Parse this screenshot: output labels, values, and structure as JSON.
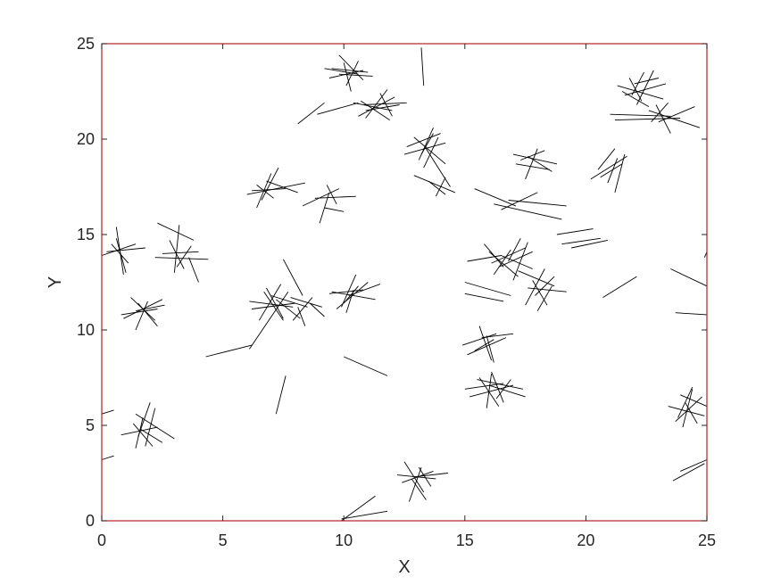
{
  "chart_data": {
    "type": "line",
    "title": "",
    "xlabel": "X",
    "ylabel": "Y",
    "xlim": [
      0,
      25
    ],
    "ylim": [
      0,
      25
    ],
    "xticks": [
      0,
      5,
      10,
      15,
      20,
      25
    ],
    "yticks": [
      0,
      5,
      10,
      15,
      20,
      25
    ],
    "grid": false,
    "legend": "none",
    "frame_color": "#b22222",
    "line_color": "#000000",
    "segments": [
      [
        9.5,
        23.7,
        11.0,
        23.5
      ],
      [
        9.2,
        23.7,
        10.6,
        23.4
      ],
      [
        9.4,
        23.2,
        10.8,
        23.6
      ],
      [
        9.8,
        24.4,
        10.8,
        23.1
      ],
      [
        10.0,
        24.0,
        10.3,
        22.5
      ],
      [
        10.6,
        24.1,
        10.1,
        22.8
      ],
      [
        9.8,
        23.4,
        11.2,
        23.3
      ],
      [
        10.4,
        21.9,
        12.0,
        21.5
      ],
      [
        10.6,
        21.2,
        12.1,
        22.2
      ],
      [
        10.9,
        21.1,
        11.8,
        22.6
      ],
      [
        10.8,
        21.8,
        12.6,
        21.9
      ],
      [
        11.5,
        22.4,
        12.0,
        21.2
      ],
      [
        10.9,
        21.5,
        12.3,
        21.8
      ],
      [
        10.7,
        22.0,
        11.9,
        21.0
      ],
      [
        8.1,
        20.8,
        9.2,
        21.9
      ],
      [
        8.9,
        21.3,
        10.6,
        21.9
      ],
      [
        13.2,
        24.8,
        13.3,
        22.8
      ],
      [
        12.6,
        19.6,
        14.0,
        20.3
      ],
      [
        12.5,
        19.2,
        14.2,
        19.8
      ],
      [
        13.1,
        18.9,
        13.7,
        20.6
      ],
      [
        13.3,
        18.5,
        13.9,
        20.1
      ],
      [
        12.9,
        20.1,
        14.2,
        18.7
      ],
      [
        13.4,
        19.5,
        14.4,
        17.5
      ],
      [
        12.9,
        18.1,
        14.6,
        17.2
      ],
      [
        13.5,
        17.8,
        14.2,
        17.1
      ],
      [
        14.2,
        18.0,
        13.8,
        17.0
      ],
      [
        13.7,
        20.3,
        13.2,
        19.2
      ],
      [
        15.4,
        17.4,
        17.1,
        16.5
      ],
      [
        16.5,
        16.3,
        18.0,
        17.2
      ],
      [
        16.8,
        16.8,
        19.2,
        16.5
      ],
      [
        16.2,
        16.6,
        19.0,
        15.8
      ],
      [
        17.0,
        19.2,
        18.8,
        18.7
      ],
      [
        17.3,
        18.9,
        18.3,
        19.4
      ],
      [
        17.6,
        19.1,
        18.6,
        18.3
      ],
      [
        18.0,
        19.5,
        17.5,
        17.9
      ],
      [
        17.1,
        18.7,
        18.5,
        18.4
      ],
      [
        20.2,
        17.9,
        21.7,
        19.1
      ],
      [
        20.6,
        18.0,
        21.5,
        18.7
      ],
      [
        20.9,
        17.7,
        21.3,
        19.0
      ],
      [
        21.2,
        17.2,
        21.6,
        19.2
      ],
      [
        20.5,
        18.4,
        21.2,
        19.5
      ],
      [
        21.3,
        22.8,
        23.2,
        22.1
      ],
      [
        21.5,
        22.5,
        22.6,
        21.7
      ],
      [
        21.8,
        23.2,
        22.3,
        22.0
      ],
      [
        22.0,
        22.9,
        23.0,
        23.2
      ],
      [
        22.4,
        23.5,
        21.9,
        22.3
      ],
      [
        21.6,
        22.3,
        23.3,
        22.9
      ],
      [
        22.1,
        21.8,
        22.8,
        23.6
      ],
      [
        21.0,
        21.3,
        23.5,
        21.2
      ],
      [
        21.2,
        21.0,
        23.9,
        21.1
      ],
      [
        22.6,
        21.5,
        24.7,
        20.6
      ],
      [
        23.0,
        20.9,
        24.5,
        21.7
      ],
      [
        22.9,
        21.8,
        23.5,
        20.3
      ],
      [
        23.4,
        21.9,
        22.7,
        20.9
      ],
      [
        6.2,
        17.3,
        7.6,
        17.4
      ],
      [
        6.4,
        16.4,
        7.0,
        18.2
      ],
      [
        6.6,
        16.8,
        7.3,
        18.5
      ],
      [
        6.8,
        17.8,
        8.1,
        17.2
      ],
      [
        6.0,
        17.1,
        8.4,
        17.7
      ],
      [
        7.1,
        16.9,
        6.4,
        17.6
      ],
      [
        8.3,
        16.5,
        9.8,
        17.4
      ],
      [
        8.8,
        16.9,
        10.5,
        17.0
      ],
      [
        9.0,
        15.6,
        9.4,
        17.2
      ],
      [
        9.2,
        16.4,
        10.0,
        16.2
      ],
      [
        9.7,
        16.6,
        9.3,
        17.6
      ],
      [
        0.2,
        14.1,
        1.8,
        14.3
      ],
      [
        0.6,
        14.8,
        1.0,
        13.0
      ],
      [
        0.9,
        12.9,
        0.6,
        15.4
      ],
      [
        0.0,
        13.9,
        1.4,
        14.5
      ],
      [
        0.4,
        14.5,
        1.1,
        13.5
      ],
      [
        2.2,
        13.8,
        4.4,
        13.7
      ],
      [
        2.5,
        14.0,
        4.0,
        14.1
      ],
      [
        2.8,
        14.7,
        3.4,
        13.2
      ],
      [
        3.1,
        13.3,
        3.7,
        14.4
      ],
      [
        2.3,
        15.6,
        3.8,
        14.7
      ],
      [
        3.2,
        15.5,
        3.0,
        13.0
      ],
      [
        3.6,
        13.8,
        4.0,
        12.5
      ],
      [
        0.8,
        10.8,
        2.3,
        11.1
      ],
      [
        1.2,
        11.7,
        2.2,
        10.5
      ],
      [
        1.5,
        11.4,
        2.3,
        10.2
      ],
      [
        1.4,
        10.0,
        1.9,
        11.5
      ],
      [
        0.9,
        10.6,
        2.5,
        11.6
      ],
      [
        1.4,
        11.0,
        2.6,
        11.3
      ],
      [
        6.1,
        11.5,
        7.9,
        11.2
      ],
      [
        6.2,
        11.1,
        8.0,
        11.4
      ],
      [
        6.5,
        10.5,
        7.4,
        12.4
      ],
      [
        6.7,
        12.0,
        7.5,
        10.5
      ],
      [
        7.0,
        11.8,
        8.5,
        11.2
      ],
      [
        7.2,
        11.6,
        8.2,
        10.6
      ],
      [
        7.5,
        10.6,
        6.8,
        12.2
      ],
      [
        7.8,
        11.7,
        9.1,
        11.2
      ],
      [
        8.1,
        11.2,
        8.4,
        10.2
      ],
      [
        7.9,
        10.5,
        8.7,
        11.7
      ],
      [
        8.6,
        11.4,
        9.2,
        10.7
      ],
      [
        7.5,
        13.7,
        8.3,
        11.8
      ],
      [
        6.1,
        9.0,
        7.7,
        12.0
      ],
      [
        4.3,
        8.6,
        6.2,
        9.2
      ],
      [
        7.2,
        5.6,
        7.6,
        7.6
      ],
      [
        9.4,
        11.9,
        10.8,
        12.1
      ],
      [
        9.7,
        11.1,
        11.0,
        12.5
      ],
      [
        10.1,
        10.9,
        10.4,
        12.1
      ],
      [
        10.5,
        12.9,
        9.9,
        11.2
      ],
      [
        10.2,
        11.8,
        11.5,
        12.4
      ],
      [
        9.5,
        12.0,
        11.3,
        11.6
      ],
      [
        10.6,
        12.3,
        10.0,
        11.4
      ],
      [
        15.1,
        13.6,
        16.5,
        13.9
      ],
      [
        15.8,
        14.5,
        16.6,
        13.3
      ],
      [
        16.0,
        14.1,
        17.2,
        12.8
      ],
      [
        16.4,
        13.3,
        17.8,
        14.1
      ],
      [
        16.8,
        13.6,
        17.3,
        14.8
      ],
      [
        17.0,
        12.6,
        17.6,
        14.6
      ],
      [
        16.5,
        13.9,
        17.8,
        13.2
      ],
      [
        16.9,
        14.2,
        16.2,
        12.9
      ],
      [
        16.1,
        13.5,
        17.5,
        14.3
      ],
      [
        17.2,
        13.1,
        18.7,
        12.3
      ],
      [
        17.8,
        12.6,
        18.4,
        11.3
      ],
      [
        17.9,
        11.8,
        18.7,
        12.8
      ],
      [
        18.0,
        11.0,
        18.6,
        12.3
      ],
      [
        18.3,
        13.2,
        17.5,
        11.3
      ],
      [
        17.6,
        12.2,
        19.2,
        12.0
      ],
      [
        15.0,
        12.5,
        16.9,
        11.8
      ],
      [
        15.0,
        11.9,
        16.6,
        11.5
      ],
      [
        14.9,
        9.2,
        16.3,
        9.8
      ],
      [
        15.1,
        8.7,
        16.7,
        9.6
      ],
      [
        15.6,
        10.2,
        16.1,
        8.4
      ],
      [
        15.4,
        8.9,
        16.2,
        9.5
      ],
      [
        16.2,
        8.3,
        15.9,
        9.7
      ],
      [
        15.7,
        9.6,
        17.0,
        9.8
      ],
      [
        15.0,
        6.9,
        16.6,
        7.2
      ],
      [
        15.2,
        6.5,
        17.0,
        7.1
      ],
      [
        15.6,
        7.5,
        16.4,
        6.0
      ],
      [
        15.9,
        5.9,
        16.1,
        7.7
      ],
      [
        16.0,
        7.1,
        17.5,
        6.5
      ],
      [
        16.3,
        6.4,
        16.9,
        7.4
      ],
      [
        15.5,
        7.4,
        17.4,
        6.9
      ],
      [
        16.1,
        7.8,
        16.6,
        6.2
      ],
      [
        18.8,
        15.0,
        20.3,
        15.3
      ],
      [
        19.0,
        14.5,
        20.6,
        14.8
      ],
      [
        19.4,
        14.3,
        20.9,
        14.7
      ],
      [
        20.7,
        11.7,
        22.1,
        12.8
      ],
      [
        23.5,
        13.2,
        25.0,
        12.3
      ],
      [
        23.7,
        10.9,
        25.0,
        10.8
      ],
      [
        23.4,
        6.0,
        24.9,
        5.5
      ],
      [
        23.7,
        5.2,
        24.8,
        6.5
      ],
      [
        24.0,
        4.9,
        24.4,
        6.9
      ],
      [
        24.1,
        6.2,
        24.6,
        5.1
      ],
      [
        23.9,
        6.6,
        25.0,
        6.0
      ],
      [
        24.4,
        7.0,
        23.8,
        5.4
      ],
      [
        23.6,
        2.1,
        24.9,
        3.0
      ],
      [
        23.9,
        2.6,
        25.0,
        3.2
      ],
      [
        25.0,
        14.1,
        24.9,
        13.8
      ],
      [
        1.6,
        4.8,
        2.5,
        4.1
      ],
      [
        1.3,
        5.1,
        2.1,
        3.9
      ],
      [
        1.5,
        4.4,
        2.0,
        6.2
      ],
      [
        1.8,
        3.9,
        2.2,
        5.9
      ],
      [
        1.4,
        5.6,
        3.0,
        4.3
      ],
      [
        0.8,
        4.5,
        2.3,
        4.9
      ],
      [
        1.7,
        5.4,
        1.4,
        3.8
      ],
      [
        0.0,
        5.6,
        0.5,
        5.8
      ],
      [
        0.0,
        3.2,
        0.5,
        3.4
      ],
      [
        12.2,
        2.4,
        13.8,
        2.2
      ],
      [
        12.5,
        3.1,
        13.3,
        1.5
      ],
      [
        12.7,
        1.0,
        13.2,
        2.8
      ],
      [
        12.9,
        2.3,
        14.3,
        2.5
      ],
      [
        12.4,
        2.0,
        13.7,
        2.6
      ],
      [
        13.1,
        2.8,
        13.6,
        1.8
      ],
      [
        12.8,
        2.2,
        13.4,
        1.1
      ],
      [
        9.9,
        0.1,
        11.8,
        0.5
      ],
      [
        9.9,
        0.0,
        11.3,
        1.3
      ],
      [
        10.0,
        8.6,
        11.8,
        7.6
      ]
    ]
  }
}
